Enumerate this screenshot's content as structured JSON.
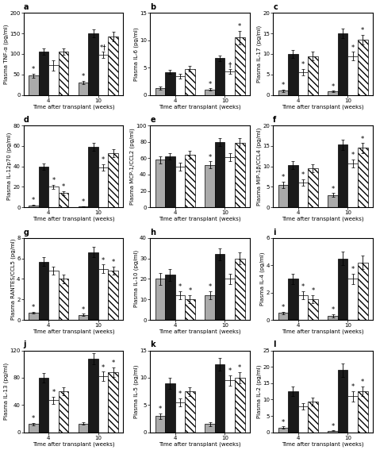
{
  "chart_data": [
    {
      "type": "bar",
      "title": "a",
      "xlabel": "Time after transplant (weeks)",
      "ylabel": "Plasma TNF-α (pg/ml)",
      "categories": [
        "4",
        "10"
      ],
      "ylim": [
        0,
        200
      ],
      "yticks": [
        0,
        50,
        100,
        150,
        200
      ],
      "series": [
        {
          "color": "#aaaaaa",
          "values": [
            47,
            30
          ],
          "errors": [
            5,
            4
          ],
          "annotations": [
            "*",
            "*"
          ]
        },
        {
          "color": "#1a1a1a",
          "values": [
            105,
            150
          ],
          "errors": [
            8,
            10
          ],
          "annotations": [
            null,
            null
          ]
        },
        {
          "color": "#ffffff",
          "values": [
            72,
            98
          ],
          "errors": [
            12,
            8
          ],
          "annotations": [
            null,
            "*†"
          ]
        },
        {
          "color": "#ffffff",
          "values": [
            105,
            143
          ],
          "errors": [
            8,
            12
          ],
          "annotations": [
            null,
            null
          ]
        }
      ]
    },
    {
      "type": "bar",
      "title": "b",
      "xlabel": "Time after transplant (weeks)",
      "ylabel": "Plasma IL-6 (pg/ml)",
      "categories": [
        "4",
        "10"
      ],
      "ylim": [
        0,
        15
      ],
      "yticks": [
        0,
        5,
        10,
        15
      ],
      "series": [
        {
          "color": "#aaaaaa",
          "values": [
            1.2,
            1.0
          ],
          "errors": [
            0.3,
            0.2
          ],
          "annotations": [
            null,
            "*"
          ]
        },
        {
          "color": "#1a1a1a",
          "values": [
            4.2,
            6.7
          ],
          "errors": [
            0.4,
            0.5
          ],
          "annotations": [
            null,
            null
          ]
        },
        {
          "color": "#ffffff",
          "values": [
            3.4,
            4.3
          ],
          "errors": [
            0.4,
            0.4
          ],
          "annotations": [
            null,
            "†"
          ]
        },
        {
          "color": "#ffffff",
          "values": [
            4.8,
            10.5
          ],
          "errors": [
            0.5,
            1.2
          ],
          "annotations": [
            null,
            "*"
          ]
        }
      ]
    },
    {
      "type": "bar",
      "title": "c",
      "xlabel": "Time after transplant (weeks)",
      "ylabel": "Plasma IL-17 (pg/ml)",
      "categories": [
        "4",
        "10"
      ],
      "ylim": [
        0,
        20
      ],
      "yticks": [
        0,
        5,
        10,
        15,
        20
      ],
      "series": [
        {
          "color": "#aaaaaa",
          "values": [
            1.0,
            0.8
          ],
          "errors": [
            0.3,
            0.2
          ],
          "annotations": [
            "*",
            "*"
          ]
        },
        {
          "color": "#1a1a1a",
          "values": [
            10.0,
            15.0
          ],
          "errors": [
            1.0,
            1.2
          ],
          "annotations": [
            null,
            null
          ]
        },
        {
          "color": "#ffffff",
          "values": [
            5.5,
            9.5
          ],
          "errors": [
            0.8,
            1.0
          ],
          "annotations": [
            "*",
            "*"
          ]
        },
        {
          "color": "#ffffff",
          "values": [
            9.5,
            13.5
          ],
          "errors": [
            1.0,
            1.2
          ],
          "annotations": [
            null,
            "*"
          ]
        }
      ]
    },
    {
      "type": "bar",
      "title": "d",
      "xlabel": "Time after transplant (weeks)",
      "ylabel": "Plasma IL-12p70 (pg/ml)",
      "categories": [
        "4",
        "10"
      ],
      "ylim": [
        0,
        80
      ],
      "yticks": [
        0,
        20,
        40,
        60,
        80
      ],
      "series": [
        {
          "color": "#aaaaaa",
          "values": [
            2.0,
            1.0
          ],
          "errors": [
            0.5,
            0.3
          ],
          "annotations": [
            "*",
            "*"
          ]
        },
        {
          "color": "#1a1a1a",
          "values": [
            40.0,
            59.0
          ],
          "errors": [
            3.0,
            4.0
          ],
          "annotations": [
            null,
            null
          ]
        },
        {
          "color": "#ffffff",
          "values": [
            20.0,
            39.0
          ],
          "errors": [
            2.0,
            3.0
          ],
          "annotations": [
            "*",
            "*"
          ]
        },
        {
          "color": "#ffffff",
          "values": [
            14.0,
            53.0
          ],
          "errors": [
            2.0,
            4.0
          ],
          "annotations": [
            "*",
            null
          ]
        }
      ]
    },
    {
      "type": "bar",
      "title": "e",
      "xlabel": "Time after transplant (weeks)",
      "ylabel": "Plasma MCP-1/CCL2 (pg/ml)",
      "categories": [
        "4",
        "10"
      ],
      "ylim": [
        0,
        100
      ],
      "yticks": [
        0,
        20,
        40,
        60,
        80,
        100
      ],
      "series": [
        {
          "color": "#aaaaaa",
          "values": [
            58.0,
            52.0
          ],
          "errors": [
            4.0,
            4.0
          ],
          "annotations": [
            null,
            "*"
          ]
        },
        {
          "color": "#1a1a1a",
          "values": [
            62.0,
            80.0
          ],
          "errors": [
            4.0,
            5.0
          ],
          "annotations": [
            null,
            null
          ]
        },
        {
          "color": "#ffffff",
          "values": [
            50.0,
            61.0
          ],
          "errors": [
            5.0,
            5.0
          ],
          "annotations": [
            null,
            null
          ]
        },
        {
          "color": "#ffffff",
          "values": [
            64.0,
            79.0
          ],
          "errors": [
            5.0,
            6.0
          ],
          "annotations": [
            null,
            null
          ]
        }
      ]
    },
    {
      "type": "bar",
      "title": "f",
      "xlabel": "Time after transplant (weeks)",
      "ylabel": "Plasma MIP-1β/CCL4 (pg/ml)",
      "categories": [
        "4",
        "10"
      ],
      "ylim": [
        0,
        20
      ],
      "yticks": [
        0,
        5,
        10,
        15,
        20
      ],
      "series": [
        {
          "color": "#aaaaaa",
          "values": [
            5.5,
            3.0
          ],
          "errors": [
            0.8,
            0.5
          ],
          "annotations": [
            "*",
            "*"
          ]
        },
        {
          "color": "#1a1a1a",
          "values": [
            10.3,
            15.3
          ],
          "errors": [
            1.0,
            1.2
          ],
          "annotations": [
            null,
            null
          ]
        },
        {
          "color": "#ffffff",
          "values": [
            6.0,
            10.7
          ],
          "errors": [
            0.8,
            1.0
          ],
          "annotations": [
            "*",
            "*"
          ]
        },
        {
          "color": "#ffffff",
          "values": [
            9.5,
            14.5
          ],
          "errors": [
            1.0,
            1.2
          ],
          "annotations": [
            null,
            "*"
          ]
        }
      ]
    },
    {
      "type": "bar",
      "title": "g",
      "xlabel": "Time after transplant (weeks)",
      "ylabel": "Plasma RANTES/CCL5 (pg/ml)",
      "categories": [
        "4",
        "10"
      ],
      "ylim": [
        0,
        8
      ],
      "yticks": [
        0,
        2,
        4,
        6,
        8
      ],
      "series": [
        {
          "color": "#aaaaaa",
          "values": [
            0.7,
            0.5
          ],
          "errors": [
            0.1,
            0.1
          ],
          "annotations": [
            "*",
            "*"
          ]
        },
        {
          "color": "#1a1a1a",
          "values": [
            5.7,
            6.6
          ],
          "errors": [
            0.4,
            0.5
          ],
          "annotations": [
            null,
            null
          ]
        },
        {
          "color": "#ffffff",
          "values": [
            4.8,
            5.0
          ],
          "errors": [
            0.4,
            0.4
          ],
          "annotations": [
            null,
            "*"
          ]
        },
        {
          "color": "#ffffff",
          "values": [
            4.0,
            4.8
          ],
          "errors": [
            0.4,
            0.4
          ],
          "annotations": [
            null,
            "*"
          ]
        }
      ]
    },
    {
      "type": "bar",
      "title": "h",
      "xlabel": "Time after transplant (weeks)",
      "ylabel": "Plasma IL-10 (pg/ml)",
      "categories": [
        "4",
        "10"
      ],
      "ylim": [
        0,
        40
      ],
      "yticks": [
        0,
        10,
        20,
        30,
        40
      ],
      "series": [
        {
          "color": "#aaaaaa",
          "values": [
            20.0,
            12.0
          ],
          "errors": [
            3.0,
            2.0
          ],
          "annotations": [
            null,
            "*"
          ]
        },
        {
          "color": "#1a1a1a",
          "values": [
            22.0,
            32.0
          ],
          "errors": [
            3.0,
            3.0
          ],
          "annotations": [
            null,
            null
          ]
        },
        {
          "color": "#ffffff",
          "values": [
            12.0,
            20.0
          ],
          "errors": [
            2.0,
            2.5
          ],
          "annotations": [
            "*",
            null
          ]
        },
        {
          "color": "#ffffff",
          "values": [
            10.0,
            30.0
          ],
          "errors": [
            2.0,
            3.0
          ],
          "annotations": [
            "*",
            null
          ]
        }
      ]
    },
    {
      "type": "bar",
      "title": "i",
      "xlabel": "Time after transplant (weeks)",
      "ylabel": "Plasma IL-4 (pg/ml)",
      "categories": [
        "4",
        "10"
      ],
      "ylim": [
        0,
        6
      ],
      "yticks": [
        0,
        2,
        4,
        6
      ],
      "series": [
        {
          "color": "#aaaaaa",
          "values": [
            0.5,
            0.3
          ],
          "errors": [
            0.1,
            0.1
          ],
          "annotations": [
            "*",
            "*"
          ]
        },
        {
          "color": "#1a1a1a",
          "values": [
            3.0,
            4.5
          ],
          "errors": [
            0.4,
            0.5
          ],
          "annotations": [
            null,
            null
          ]
        },
        {
          "color": "#ffffff",
          "values": [
            1.8,
            3.0
          ],
          "errors": [
            0.3,
            0.4
          ],
          "annotations": [
            "*",
            "*"
          ]
        },
        {
          "color": "#ffffff",
          "values": [
            1.5,
            4.2
          ],
          "errors": [
            0.3,
            0.5
          ],
          "annotations": [
            "*",
            null
          ]
        }
      ]
    },
    {
      "type": "bar",
      "title": "j",
      "xlabel": "Time after transplant (weeks)",
      "ylabel": "Plasma IL-13 (pg/ml)",
      "categories": [
        "4",
        "10"
      ],
      "ylim": [
        0,
        120
      ],
      "yticks": [
        0,
        40,
        80,
        120
      ],
      "series": [
        {
          "color": "#aaaaaa",
          "values": [
            12.0,
            13.0
          ],
          "errors": [
            2.0,
            2.0
          ],
          "annotations": [
            "*",
            null
          ]
        },
        {
          "color": "#1a1a1a",
          "values": [
            80.0,
            108.0
          ],
          "errors": [
            7.0,
            8.0
          ],
          "annotations": [
            null,
            null
          ]
        },
        {
          "color": "#ffffff",
          "values": [
            47.0,
            82.0
          ],
          "errors": [
            5.0,
            7.0
          ],
          "annotations": [
            "*",
            "*"
          ]
        },
        {
          "color": "#ffffff",
          "values": [
            60.0,
            88.0
          ],
          "errors": [
            6.0,
            7.0
          ],
          "annotations": [
            null,
            "*"
          ]
        }
      ]
    },
    {
      "type": "bar",
      "title": "k",
      "xlabel": "Time after transplant (weeks)",
      "ylabel": "Plasma IL-5 (pg/ml)",
      "categories": [
        "4",
        "10"
      ],
      "ylim": [
        0,
        15
      ],
      "yticks": [
        0,
        5,
        10,
        15
      ],
      "series": [
        {
          "color": "#aaaaaa",
          "values": [
            3.0,
            1.5
          ],
          "errors": [
            0.5,
            0.3
          ],
          "annotations": [
            "*",
            null
          ]
        },
        {
          "color": "#1a1a1a",
          "values": [
            9.0,
            12.5
          ],
          "errors": [
            1.0,
            1.2
          ],
          "annotations": [
            null,
            null
          ]
        },
        {
          "color": "#ffffff",
          "values": [
            5.5,
            9.5
          ],
          "errors": [
            0.7,
            1.0
          ],
          "annotations": [
            "*",
            "*"
          ]
        },
        {
          "color": "#ffffff",
          "values": [
            7.5,
            10.0
          ],
          "errors": [
            0.8,
            1.0
          ],
          "annotations": [
            null,
            "*"
          ]
        }
      ]
    },
    {
      "type": "bar",
      "title": "l",
      "xlabel": "Time after transplant (weeks)",
      "ylabel": "Plasma IL-2 (pg/ml)",
      "categories": [
        "4",
        "10"
      ],
      "ylim": [
        0,
        25
      ],
      "yticks": [
        0,
        5,
        10,
        15,
        20,
        25
      ],
      "series": [
        {
          "color": "#aaaaaa",
          "values": [
            1.5,
            0.5
          ],
          "errors": [
            0.3,
            0.1
          ],
          "annotations": [
            "*",
            "*"
          ]
        },
        {
          "color": "#1a1a1a",
          "values": [
            12.5,
            19.0
          ],
          "errors": [
            1.5,
            2.0
          ],
          "annotations": [
            null,
            null
          ]
        },
        {
          "color": "#ffffff",
          "values": [
            8.0,
            11.0
          ],
          "errors": [
            1.0,
            1.5
          ],
          "annotations": [
            null,
            "*"
          ]
        },
        {
          "color": "#ffffff",
          "values": [
            9.5,
            12.5
          ],
          "errors": [
            1.2,
            1.5
          ],
          "annotations": [
            null,
            "*"
          ]
        }
      ]
    }
  ]
}
